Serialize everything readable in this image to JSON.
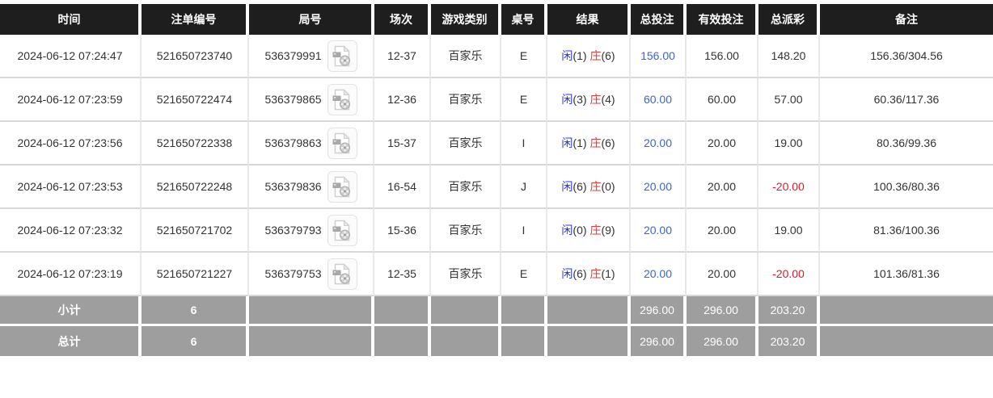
{
  "table": {
    "columns": [
      {
        "key": "time",
        "label": "时间"
      },
      {
        "key": "bet_id",
        "label": "注单编号"
      },
      {
        "key": "round_id",
        "label": "局号"
      },
      {
        "key": "session",
        "label": "场次"
      },
      {
        "key": "game_type",
        "label": "游戏类别"
      },
      {
        "key": "table_no",
        "label": "桌号"
      },
      {
        "key": "result",
        "label": "结果"
      },
      {
        "key": "total_bet",
        "label": "总投注"
      },
      {
        "key": "valid_bet",
        "label": "有效投注"
      },
      {
        "key": "total_payout",
        "label": "总派彩"
      },
      {
        "key": "remark",
        "label": "备注"
      }
    ],
    "rows": [
      {
        "time": "2024-06-12 07:24:47",
        "bet_id": "521650723740",
        "round_id": "536379991",
        "session": "12-37",
        "game_type": "百家乐",
        "table_no": "E",
        "result": {
          "player": "闲",
          "player_score": "(1)",
          "banker": "庄",
          "banker_score": "(6)"
        },
        "total_bet": "156.00",
        "valid_bet": "156.00",
        "total_payout": "148.20",
        "remark": "156.36/304.56"
      },
      {
        "time": "2024-06-12 07:23:59",
        "bet_id": "521650722474",
        "round_id": "536379865",
        "session": "12-36",
        "game_type": "百家乐",
        "table_no": "E",
        "result": {
          "player": "闲",
          "player_score": "(3)",
          "banker": "庄",
          "banker_score": "(4)"
        },
        "total_bet": "60.00",
        "valid_bet": "60.00",
        "total_payout": "57.00",
        "remark": "60.36/117.36"
      },
      {
        "time": "2024-06-12 07:23:56",
        "bet_id": "521650722338",
        "round_id": "536379863",
        "session": "15-37",
        "game_type": "百家乐",
        "table_no": "I",
        "result": {
          "player": "闲",
          "player_score": "(1)",
          "banker": "庄",
          "banker_score": "(6)"
        },
        "total_bet": "20.00",
        "valid_bet": "20.00",
        "total_payout": "19.00",
        "remark": "80.36/99.36"
      },
      {
        "time": "2024-06-12 07:23:53",
        "bet_id": "521650722248",
        "round_id": "536379836",
        "session": "16-54",
        "game_type": "百家乐",
        "table_no": "J",
        "result": {
          "player": "闲",
          "player_score": "(6)",
          "banker": "庄",
          "banker_score": "(0)"
        },
        "total_bet": "20.00",
        "valid_bet": "20.00",
        "total_payout": "-20.00",
        "remark": "100.36/80.36"
      },
      {
        "time": "2024-06-12 07:23:32",
        "bet_id": "521650721702",
        "round_id": "536379793",
        "session": "15-36",
        "game_type": "百家乐",
        "table_no": "I",
        "result": {
          "player": "闲",
          "player_score": "(0)",
          "banker": "庄",
          "banker_score": "(9)"
        },
        "total_bet": "20.00",
        "valid_bet": "20.00",
        "total_payout": "19.00",
        "remark": "81.36/100.36"
      },
      {
        "time": "2024-06-12 07:23:19",
        "bet_id": "521650721227",
        "round_id": "536379753",
        "session": "12-35",
        "game_type": "百家乐",
        "table_no": "E",
        "result": {
          "player": "闲",
          "player_score": "(6)",
          "banker": "庄",
          "banker_score": "(1)"
        },
        "total_bet": "20.00",
        "valid_bet": "20.00",
        "total_payout": "-20.00",
        "remark": "101.36/81.36"
      }
    ],
    "summary_rows": [
      {
        "label": "小计",
        "count": "6",
        "total_bet": "296.00",
        "valid_bet": "296.00",
        "total_payout": "203.20"
      },
      {
        "label": "总计",
        "count": "6",
        "total_bet": "296.00",
        "valid_bet": "296.00",
        "total_payout": "203.20"
      }
    ]
  },
  "icons": {
    "round_video_icon": "video-file-icon"
  },
  "colors": {
    "header_bg": "#1e1e1e",
    "summary_bg": "#9e9e9e",
    "player_blue": "#2c33e8",
    "banker_red": "#e03a3a",
    "amount_blue": "#3a64d8",
    "negative_red": "#ee1324"
  }
}
